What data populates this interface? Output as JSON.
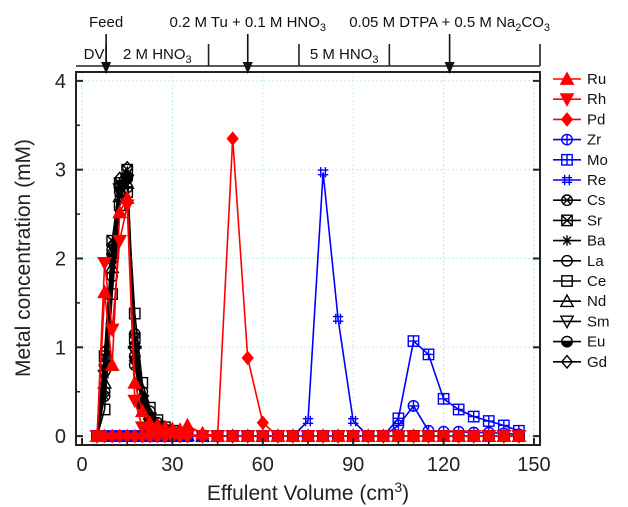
{
  "chart_data": {
    "type": "line",
    "xlabel": "Effulent Volume (cm",
    "xlabel_sup": "3",
    "xlabel_tail": ")",
    "ylabel": "Metal concentration (mM)",
    "xlim": [
      -2,
      152
    ],
    "ylim": [
      -0.1,
      4.1
    ],
    "xticks": [
      0,
      30,
      60,
      90,
      120,
      150
    ],
    "yticks": [
      0,
      1,
      2,
      3,
      4
    ],
    "grid": true,
    "legend_position": "right",
    "top_stages": [
      {
        "label": "DV",
        "x_start": 0,
        "x_end": 8
      },
      {
        "label_main": "2 M HNO",
        "label_sub": "3",
        "x_start": 8,
        "x_end": 42
      },
      {
        "label_main": "5 M HNO",
        "label_sub": "3",
        "x_start": 72,
        "x_end": 102
      }
    ],
    "top_arrows": [
      {
        "label": "Feed",
        "x": 8
      },
      {
        "label_main": "0.2 M Tu + 0.1 M HNO",
        "label_sub": "3",
        "x": 55
      },
      {
        "label_main": "0.05 M DTPA + 0.5 M Na",
        "label_sub": "2",
        "label_tail": "CO",
        "label_sub2": "3",
        "x": 122
      }
    ],
    "top_dividers": [
      8,
      42,
      72,
      102,
      152
    ],
    "x": [
      5,
      7.5,
      10,
      12.5,
      15,
      17.5,
      20,
      22.5,
      25,
      27.5,
      30,
      32.5,
      35,
      40,
      45,
      50,
      55,
      60,
      65,
      70,
      75,
      80,
      85,
      90,
      95,
      100,
      105,
      110,
      115,
      120,
      125,
      130,
      135,
      140,
      145
    ],
    "series": [
      {
        "name": "Ru",
        "color": "#ff0000",
        "marker": "triangle-up",
        "values": [
          0,
          1.62,
          0.8,
          2.52,
          2.68,
          0.6,
          0.28,
          0.15,
          0.12,
          0.1,
          0.08,
          0.07,
          0.12,
          0.03,
          0,
          0,
          0,
          0,
          0,
          0,
          0,
          0,
          0,
          0,
          0,
          0,
          0,
          0,
          0,
          0,
          0,
          0,
          0,
          0,
          0
        ]
      },
      {
        "name": "Rh",
        "color": "#ff0000",
        "marker": "triangle-down",
        "values": [
          0,
          1.95,
          1.2,
          2.2,
          2.6,
          0.4,
          0.1,
          0.05,
          0.03,
          0.02,
          0.02,
          0.02,
          0.02,
          0,
          0,
          0,
          0,
          0,
          0,
          0,
          0,
          0,
          0,
          0,
          0,
          0,
          0,
          0,
          0,
          0,
          0,
          0,
          0,
          0,
          0
        ]
      },
      {
        "name": "Pd",
        "color": "#ff0000",
        "marker": "diamond",
        "values": [
          0,
          0,
          0,
          0,
          0,
          0,
          0,
          0,
          0,
          0,
          0,
          0,
          0,
          0,
          0,
          3.35,
          0.88,
          0.15,
          0,
          0,
          0,
          0,
          0,
          0,
          0,
          0,
          0,
          0,
          0,
          0,
          0,
          0,
          0,
          0,
          0
        ]
      },
      {
        "name": "Zr",
        "color": "#0000ff",
        "marker": "circle-plus",
        "values": [
          0,
          0,
          0,
          0,
          0,
          0,
          0,
          0,
          0,
          0,
          0,
          0,
          0,
          0,
          0,
          0,
          0,
          0,
          0,
          0,
          0,
          0,
          0,
          0,
          0,
          0,
          0.12,
          0.34,
          0.06,
          0.05,
          0.05,
          0.04,
          0.04,
          0.03,
          0.02
        ]
      },
      {
        "name": "Mo",
        "color": "#0000ff",
        "marker": "square-plus",
        "values": [
          0,
          0,
          0,
          0,
          0,
          0,
          0,
          0,
          0,
          0,
          0,
          0,
          0,
          0,
          0,
          0,
          0,
          0,
          0,
          0,
          0,
          0,
          0,
          0,
          0,
          0,
          0.2,
          1.07,
          0.92,
          0.42,
          0.3,
          0.22,
          0.17,
          0.12,
          0.06
        ]
      },
      {
        "name": "Re",
        "color": "#0000ff",
        "marker": "hash",
        "values": [
          0,
          0,
          0,
          0,
          0,
          0,
          0,
          0,
          0,
          0,
          0,
          0,
          0,
          0,
          0,
          0,
          0,
          0,
          0,
          0,
          0.17,
          2.97,
          1.32,
          0.17,
          0,
          0,
          0,
          0,
          0,
          0,
          0,
          0,
          0,
          0,
          0
        ]
      },
      {
        "name": "Cs",
        "color": "#000000",
        "marker": "circle-x",
        "values": [
          0,
          0.45,
          2.1,
          2.82,
          2.9,
          0.8,
          0.35,
          0.18,
          0.1,
          0.06,
          0.03,
          0.02,
          0.01,
          0,
          0,
          0,
          0,
          0,
          0,
          0,
          0,
          0,
          0,
          0,
          0,
          0,
          0,
          0,
          0,
          0,
          0,
          0,
          0,
          0,
          0
        ]
      },
      {
        "name": "Sr",
        "color": "#000000",
        "marker": "square-x",
        "values": [
          0,
          0.9,
          2.2,
          2.85,
          3.0,
          1.1,
          0.4,
          0.2,
          0.1,
          0.05,
          0.03,
          0.02,
          0.01,
          0,
          0,
          0,
          0,
          0,
          0,
          0,
          0,
          0,
          0,
          0,
          0,
          0,
          0,
          0,
          0,
          0,
          0,
          0,
          0,
          0,
          0
        ]
      },
      {
        "name": "Ba",
        "color": "#000000",
        "marker": "asterisk",
        "values": [
          0,
          0.7,
          2.0,
          2.7,
          2.95,
          1.0,
          0.42,
          0.22,
          0.12,
          0.07,
          0.04,
          0.02,
          0.01,
          0,
          0,
          0,
          0,
          0,
          0,
          0,
          0,
          0,
          0,
          0,
          0,
          0,
          0,
          0,
          0,
          0,
          0,
          0,
          0,
          0,
          0
        ]
      },
      {
        "name": "La",
        "color": "#000000",
        "marker": "circle",
        "values": [
          0,
          0.5,
          1.8,
          2.75,
          2.8,
          1.15,
          0.5,
          0.28,
          0.15,
          0.08,
          0.05,
          0.02,
          0.01,
          0,
          0,
          0,
          0,
          0,
          0,
          0,
          0,
          0,
          0,
          0,
          0,
          0,
          0,
          0,
          0,
          0,
          0,
          0,
          0,
          0,
          0
        ]
      },
      {
        "name": "Ce",
        "color": "#000000",
        "marker": "square",
        "values": [
          0,
          0.3,
          1.6,
          2.6,
          2.75,
          1.38,
          0.6,
          0.32,
          0.18,
          0.1,
          0.06,
          0.03,
          0.01,
          0,
          0,
          0,
          0,
          0,
          0,
          0,
          0,
          0,
          0,
          0,
          0,
          0,
          0,
          0,
          0,
          0,
          0,
          0,
          0,
          0,
          0
        ]
      },
      {
        "name": "Nd",
        "color": "#000000",
        "marker": "triangle-up-open",
        "values": [
          0,
          0.6,
          1.9,
          2.7,
          2.85,
          1.05,
          0.45,
          0.25,
          0.13,
          0.07,
          0.04,
          0.02,
          0.01,
          0,
          0,
          0,
          0,
          0,
          0,
          0,
          0,
          0,
          0,
          0,
          0,
          0,
          0,
          0,
          0,
          0,
          0,
          0,
          0,
          0,
          0
        ]
      },
      {
        "name": "Sm",
        "color": "#000000",
        "marker": "triangle-down-open",
        "values": [
          0,
          0.68,
          1.95,
          2.78,
          2.88,
          0.95,
          0.4,
          0.2,
          0.11,
          0.06,
          0.03,
          0.02,
          0.01,
          0,
          0,
          0,
          0,
          0,
          0,
          0,
          0,
          0,
          0,
          0,
          0,
          0,
          0,
          0,
          0,
          0,
          0,
          0,
          0,
          0,
          0
        ]
      },
      {
        "name": "Eu",
        "color": "#000000",
        "marker": "circle-half",
        "values": [
          0,
          0.8,
          2.05,
          2.8,
          2.92,
          0.9,
          0.38,
          0.19,
          0.1,
          0.05,
          0.03,
          0.02,
          0.01,
          0,
          0,
          0,
          0,
          0,
          0,
          0,
          0,
          0,
          0,
          0,
          0,
          0,
          0,
          0,
          0,
          0,
          0,
          0,
          0,
          0,
          0
        ]
      },
      {
        "name": "Gd",
        "color": "#000000",
        "marker": "diamond-open",
        "values": [
          0,
          0.95,
          2.15,
          2.9,
          3.02,
          0.85,
          0.36,
          0.18,
          0.1,
          0.05,
          0.03,
          0.02,
          0.01,
          0,
          0,
          0,
          0,
          0,
          0,
          0,
          0,
          0,
          0,
          0,
          0,
          0,
          0,
          0,
          0,
          0,
          0,
          0,
          0,
          0,
          0
        ]
      }
    ]
  }
}
